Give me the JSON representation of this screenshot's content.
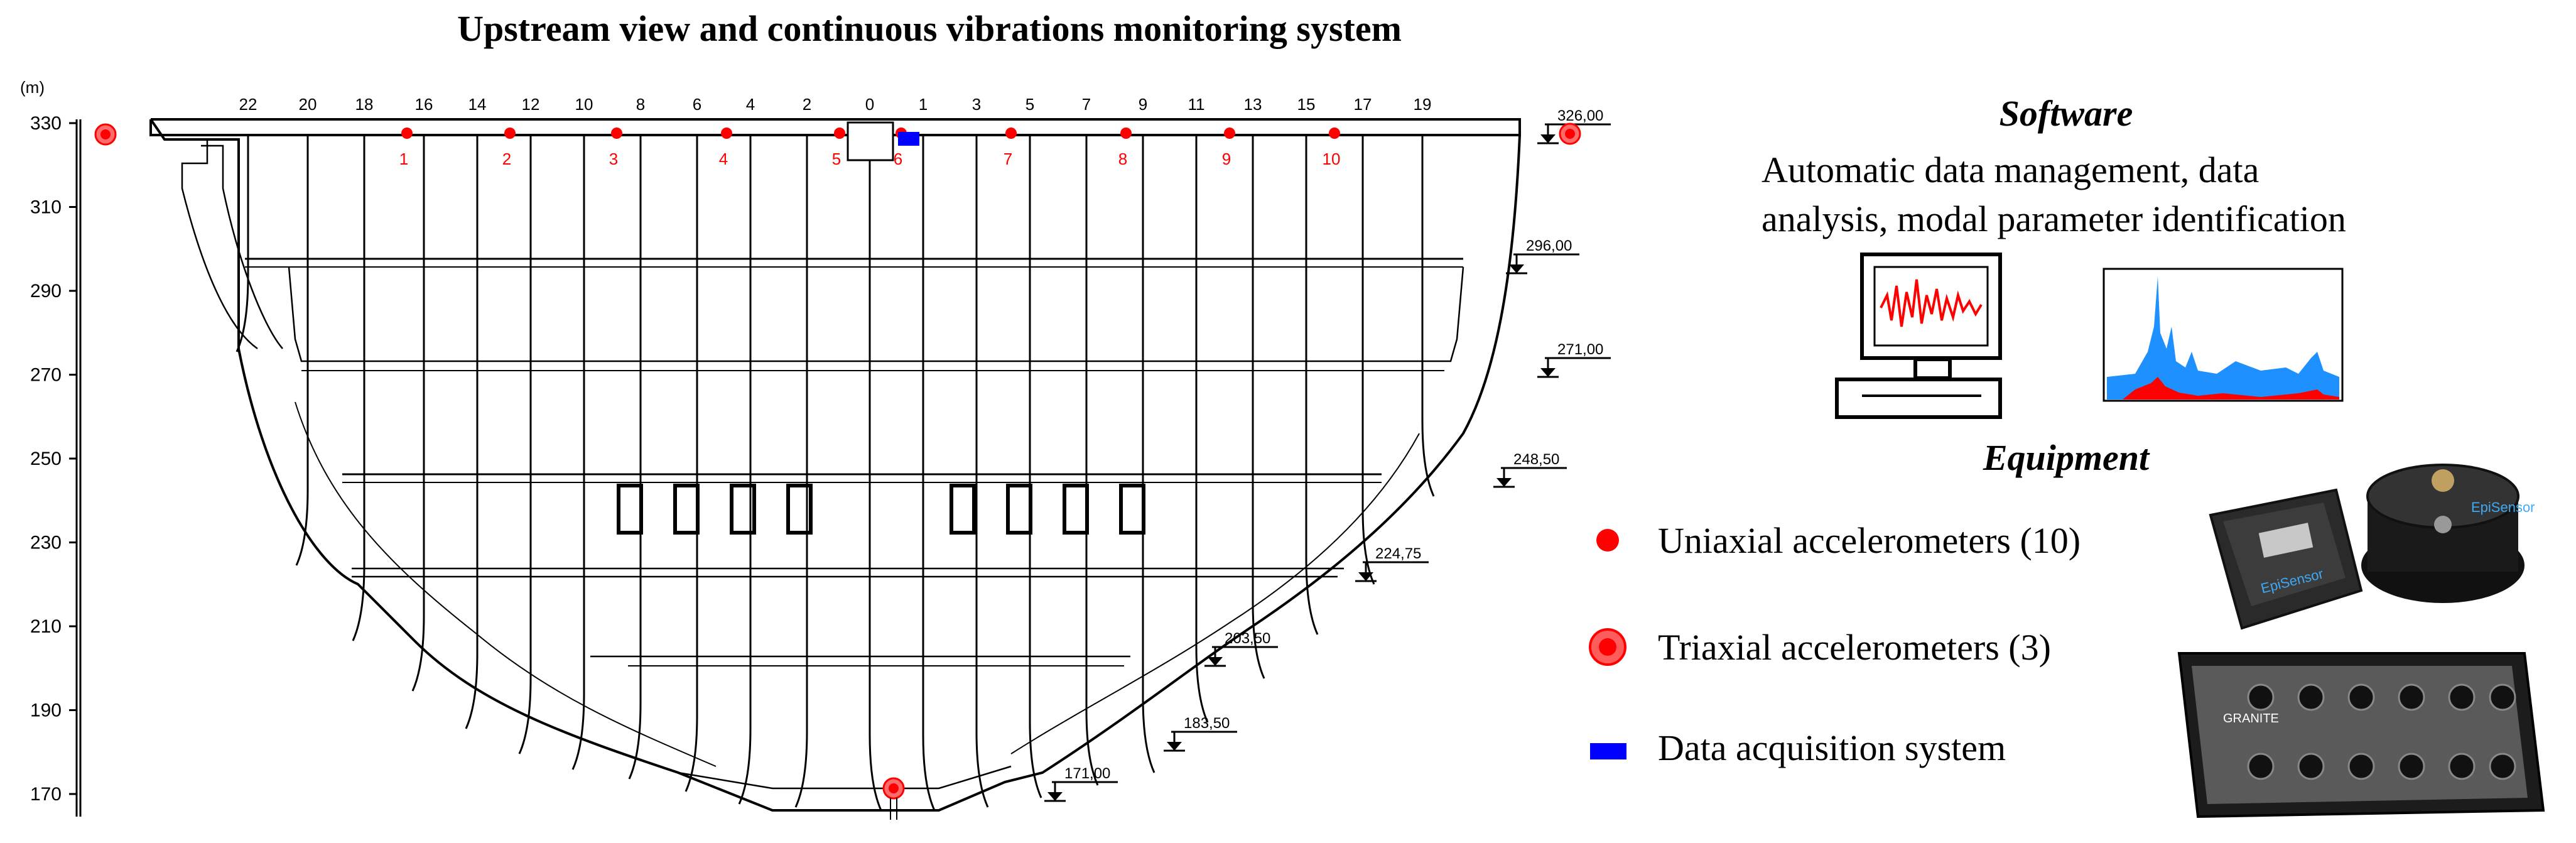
{
  "title": "Upstream view and continuous vibrations monitoring system",
  "colors": {
    "sensor": "#ff0000",
    "daq": "#0000ff",
    "spectrum": "#1e90ff",
    "line": "#000000"
  },
  "elevation_axis": {
    "unit": "(m)",
    "ticks": [
      "330",
      "310",
      "290",
      "270",
      "250",
      "230",
      "210",
      "190",
      "170"
    ]
  },
  "block_numbers": [
    "22",
    "20",
    "18",
    "16",
    "14",
    "12",
    "10",
    "8",
    "6",
    "4",
    "2",
    "0",
    "1",
    "3",
    "5",
    "7",
    "9",
    "11",
    "13",
    "15",
    "17",
    "19"
  ],
  "uniaxial_labels": [
    "1",
    "2",
    "3",
    "4",
    "5",
    "6",
    "7",
    "8",
    "9",
    "10"
  ],
  "level_marks": [
    "326,00",
    "296,00",
    "271,00",
    "248,50",
    "224,75",
    "203,50",
    "183,50",
    "171,00"
  ],
  "software": {
    "heading": "Software",
    "line1": "Automatic data management, data",
    "line2": "analysis, modal parameter identification",
    "pc_icon": "computer-monitor-with-signal",
    "spectrum_icon": "frequency-spectrum-plot"
  },
  "equipment": {
    "heading": "Equipment",
    "legend": [
      {
        "symbol": "red-dot",
        "label": "Uniaxial accelerometers (10)"
      },
      {
        "symbol": "red-ring-dot",
        "label": "Triaxial accelerometers (3)"
      },
      {
        "symbol": "blue-rect",
        "label": "Data acquisition system"
      }
    ],
    "photos": [
      {
        "name": "uniaxial-sensor-photo",
        "brand": "EpiSensor"
      },
      {
        "name": "triaxial-sensor-photo",
        "brand": "EpiSensor"
      },
      {
        "name": "digitizer-photo",
        "brand": "GRANITE"
      }
    ]
  }
}
